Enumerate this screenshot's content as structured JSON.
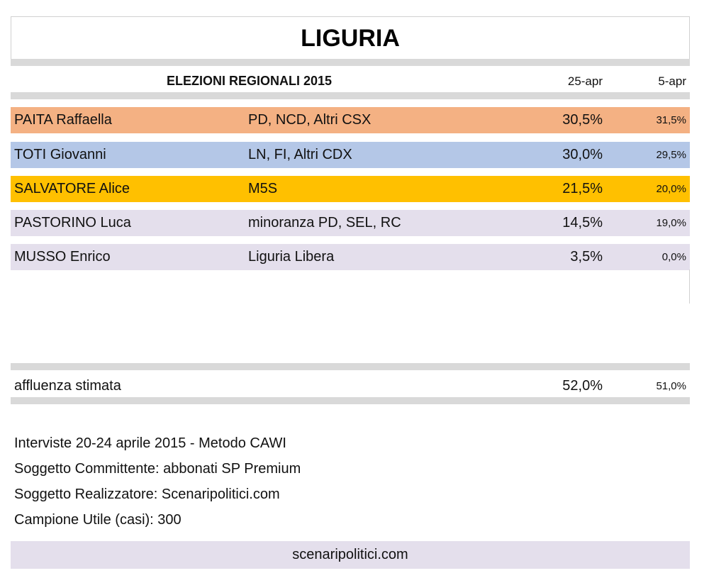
{
  "header": {
    "title": "LIGURIA",
    "subtitle": "ELEZIONI REGIONALI 2015",
    "columns": [
      "25-apr",
      "5-apr"
    ]
  },
  "table": {
    "rows": [
      [
        "PAITA Raffaella",
        "PD, NCD, Altri CSX",
        "30,5%",
        "31,5%"
      ],
      [
        "TOTI Giovanni",
        "LN, FI, Altri CDX",
        "30,0%",
        "29,5%"
      ],
      [
        "SALVATORE Alice",
        "M5S",
        "21,5%",
        "20,0%"
      ],
      [
        "PASTORINO Luca",
        "minoranza PD, SEL, RC",
        "14,5%",
        "19,0%"
      ],
      [
        "MUSSO Enrico",
        "Liguria Libera",
        "3,5%",
        "0,0%"
      ]
    ]
  },
  "turnout": {
    "label": "affluenza stimata",
    "values": [
      "52,0%",
      "51,0%"
    ]
  },
  "notes": [
    "Interviste 20-24 aprile 2015 - Metodo CAWI",
    "Soggetto Committente: abbonati SP Premium",
    "Soggetto Realizzatore: Scenaripolitici.com",
    "Campione Utile (casi): 300"
  ],
  "footer": "scenaripolitici.com"
}
